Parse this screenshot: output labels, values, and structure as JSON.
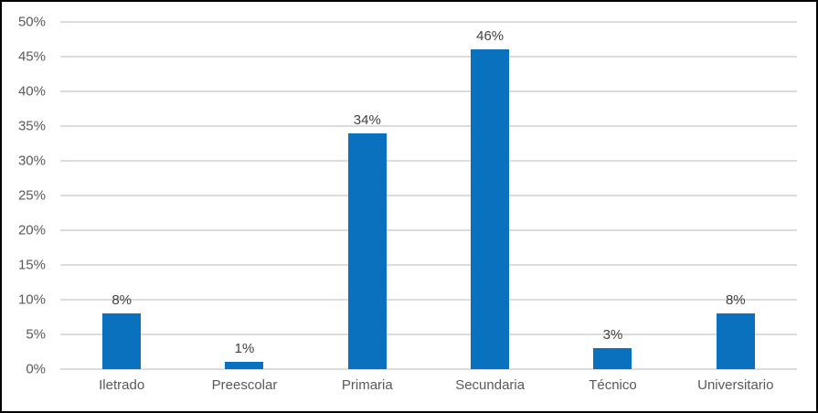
{
  "chart_data": {
    "type": "bar",
    "title": "",
    "xlabel": "",
    "ylabel": "",
    "categories": [
      "Iletrado",
      "Preescolar",
      "Primaria",
      "Secundaria",
      "Técnico",
      "Universitario"
    ],
    "values": [
      8,
      1,
      34,
      46,
      3,
      8
    ],
    "data_labels": [
      "8%",
      "1%",
      "34%",
      "46%",
      "3%",
      "8%"
    ],
    "ylim": [
      0,
      50
    ],
    "ytick_step": 5,
    "ytick_labels": [
      "0%",
      "5%",
      "10%",
      "15%",
      "20%",
      "25%",
      "30%",
      "35%",
      "40%",
      "45%",
      "50%"
    ],
    "grid": true,
    "legend": false,
    "colors": {
      "bar": "#0A71BE",
      "gridline": "#DCDCDC",
      "axis_labels": "#595959",
      "data_labels": "#404040",
      "background": "#FFFFFF",
      "border": "#000000"
    }
  }
}
